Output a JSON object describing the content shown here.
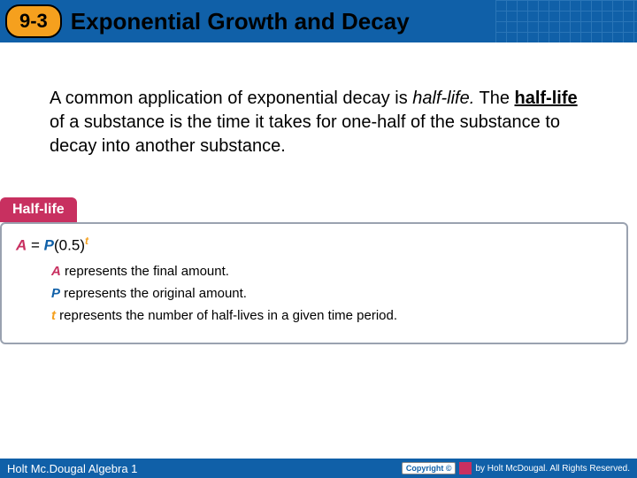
{
  "header": {
    "section_number": "9-3",
    "title": "Exponential Growth and Decay",
    "background_color": "#1060a8",
    "badge_color": "#f5a01e"
  },
  "body": {
    "text_prefix": "A common application of exponential decay is ",
    "italic_term": "half-life.",
    "text_mid": " The ",
    "bold_term": "half-life",
    "text_suffix": " of a substance is the time it takes for one-half of the substance to decay into another substance."
  },
  "formula": {
    "tab_label": "Half-life",
    "tab_color": "#c83060",
    "equation": {
      "A": "A",
      "equals": " = ",
      "P": "P",
      "open": "(",
      "base": "0.5",
      "close": ")",
      "exp": "t"
    },
    "rows": [
      {
        "var": "A",
        "var_class": "varA",
        "desc": " represents the final amount."
      },
      {
        "var": "P",
        "var_class": "varP",
        "desc": " represents the original amount."
      },
      {
        "var": "t",
        "var_class": "vart",
        "desc": " represents the number of half-lives in a given time period."
      }
    ],
    "colors": {
      "A": "#c83060",
      "P": "#1060a8",
      "t": "#f5a01e"
    }
  },
  "footer": {
    "left": "Holt Mc.Dougal Algebra 1",
    "copyright_label": "Copyright ©",
    "right_text": "by Holt McDougal. All Rights Reserved."
  }
}
